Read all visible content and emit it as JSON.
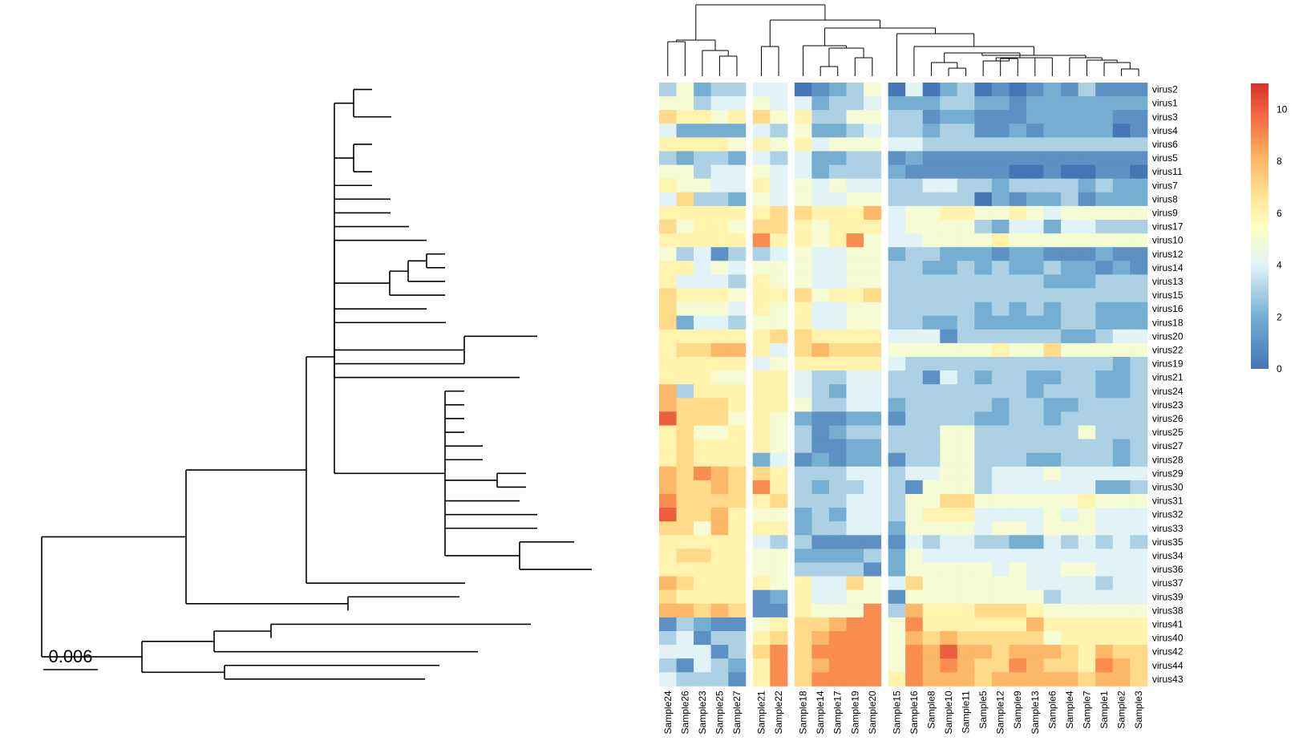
{
  "scale_bar": {
    "label": "0.006"
  },
  "chart_data": {
    "type": "heatmap",
    "title": "",
    "rows": [
      "virus2",
      "virus1",
      "virus3",
      "virus4",
      "virus6",
      "virus5",
      "virus11",
      "virus7",
      "virus8",
      "virus9",
      "virus17",
      "virus10",
      "virus12",
      "virus14",
      "virus13",
      "virus15",
      "virus16",
      "virus18",
      "virus20",
      "virus22",
      "virus19",
      "virus21",
      "virus24",
      "virus23",
      "virus26",
      "virus25",
      "virus27",
      "virus28",
      "virus29",
      "virus30",
      "virus31",
      "virus32",
      "virus33",
      "virus35",
      "virus34",
      "virus36",
      "virus37",
      "virus39",
      "virus38",
      "virus41",
      "virus40",
      "virus42",
      "virus44",
      "virus43"
    ],
    "columns": [
      "Sample24",
      "Sample26",
      "Sample23",
      "Sample25",
      "Sample27",
      "Sample21",
      "Sample22",
      "Sample18",
      "Sample14",
      "Sample17",
      "Sample19",
      "Sample20",
      "Sample15",
      "Sample16",
      "Sample8",
      "Sample10",
      "Sample11",
      "Sample5",
      "Sample12",
      "Sample9",
      "Sample13",
      "Sample6",
      "Sample4",
      "Sample7",
      "Sample1",
      "Sample2",
      "Sample3"
    ],
    "column_groups": [
      5,
      2,
      5,
      15
    ],
    "values": [
      [
        3,
        5,
        2,
        3,
        3,
        4,
        4,
        0,
        1,
        2,
        3,
        5,
        0,
        4,
        0,
        2,
        3,
        0,
        1,
        0,
        1,
        2,
        1,
        3,
        1,
        1,
        1
      ],
      [
        5,
        5,
        3,
        4,
        4,
        5,
        4,
        4,
        2,
        3,
        3,
        4,
        2,
        2,
        2,
        3,
        3,
        2,
        2,
        1,
        2,
        2,
        2,
        2,
        2,
        2,
        2
      ],
      [
        7,
        6,
        6,
        5,
        6,
        7,
        5,
        6,
        3,
        3,
        5,
        5,
        3,
        3,
        1,
        2,
        2,
        1,
        1,
        1,
        2,
        2,
        2,
        2,
        2,
        1,
        1
      ],
      [
        4,
        2,
        2,
        2,
        2,
        4,
        3,
        5,
        2,
        2,
        3,
        4,
        3,
        3,
        2,
        3,
        3,
        1,
        1,
        2,
        1,
        2,
        2,
        2,
        2,
        0,
        1
      ],
      [
        6,
        6,
        6,
        6,
        5,
        6,
        5,
        6,
        4,
        5,
        5,
        5,
        4,
        4,
        3,
        3,
        3,
        3,
        3,
        3,
        3,
        3,
        3,
        3,
        3,
        3,
        3
      ],
      [
        3,
        2,
        3,
        3,
        2,
        4,
        3,
        4,
        2,
        2,
        3,
        3,
        1,
        2,
        1,
        1,
        1,
        1,
        1,
        1,
        1,
        1,
        1,
        1,
        1,
        1,
        1
      ],
      [
        5,
        5,
        3,
        4,
        4,
        5,
        4,
        4,
        2,
        3,
        3,
        3,
        2,
        1,
        1,
        1,
        1,
        1,
        1,
        0,
        0,
        1,
        0,
        0,
        1,
        1,
        0
      ],
      [
        6,
        5,
        5,
        4,
        4,
        6,
        4,
        5,
        4,
        5,
        4,
        4,
        3,
        3,
        4,
        4,
        3,
        3,
        2,
        3,
        3,
        3,
        3,
        2,
        3,
        2,
        2
      ],
      [
        4,
        7,
        3,
        3,
        2,
        5,
        4,
        5,
        4,
        4,
        5,
        5,
        3,
        3,
        3,
        3,
        3,
        0,
        2,
        1,
        2,
        2,
        3,
        1,
        2,
        2,
        2
      ],
      [
        6,
        6,
        6,
        6,
        6,
        6,
        7,
        7,
        6,
        6,
        6,
        8,
        4,
        5,
        5,
        6,
        6,
        5,
        5,
        6,
        5,
        4,
        5,
        5,
        5,
        5,
        5
      ],
      [
        7,
        5,
        6,
        6,
        5,
        7,
        7,
        6,
        5,
        6,
        6,
        6,
        4,
        5,
        5,
        5,
        5,
        3,
        2,
        4,
        4,
        2,
        4,
        4,
        3,
        3,
        3
      ],
      [
        6,
        6,
        6,
        6,
        6,
        9,
        6,
        6,
        5,
        6,
        9,
        5,
        4,
        4,
        5,
        5,
        5,
        5,
        6,
        5,
        5,
        5,
        5,
        5,
        5,
        5,
        5
      ],
      [
        5,
        3,
        4,
        1,
        3,
        3,
        4,
        5,
        4,
        4,
        5,
        5,
        2,
        3,
        3,
        2,
        2,
        2,
        1,
        2,
        2,
        1,
        1,
        1,
        2,
        1,
        1
      ],
      [
        6,
        6,
        4,
        5,
        4,
        5,
        5,
        5,
        4,
        4,
        5,
        5,
        3,
        3,
        2,
        2,
        3,
        2,
        3,
        2,
        2,
        3,
        2,
        2,
        1,
        2,
        1
      ],
      [
        6,
        4,
        4,
        4,
        3,
        6,
        5,
        5,
        4,
        4,
        5,
        5,
        3,
        3,
        3,
        3,
        3,
        3,
        3,
        3,
        3,
        2,
        2,
        2,
        3,
        3,
        3
      ],
      [
        7,
        6,
        6,
        6,
        5,
        6,
        6,
        7,
        5,
        6,
        6,
        7,
        3,
        3,
        3,
        3,
        3,
        3,
        3,
        3,
        3,
        3,
        3,
        3,
        3,
        3,
        3
      ],
      [
        7,
        5,
        5,
        5,
        4,
        6,
        5,
        6,
        4,
        4,
        5,
        5,
        3,
        3,
        3,
        3,
        3,
        2,
        3,
        2,
        3,
        2,
        3,
        3,
        2,
        2,
        2
      ],
      [
        7,
        2,
        4,
        4,
        3,
        5,
        5,
        6,
        4,
        4,
        5,
        5,
        3,
        3,
        2,
        2,
        3,
        2,
        2,
        2,
        2,
        2,
        3,
        3,
        2,
        2,
        2
      ],
      [
        6,
        6,
        6,
        6,
        6,
        6,
        7,
        7,
        6,
        6,
        6,
        6,
        4,
        4,
        4,
        1,
        3,
        3,
        3,
        3,
        3,
        3,
        2,
        2,
        3,
        4,
        4
      ],
      [
        6,
        7,
        7,
        8,
        8,
        6,
        4,
        7,
        8,
        7,
        7,
        7,
        5,
        5,
        5,
        5,
        5,
        5,
        6,
        5,
        5,
        7,
        5,
        5,
        5,
        5,
        5
      ],
      [
        6,
        6,
        6,
        6,
        6,
        4,
        5,
        6,
        6,
        6,
        6,
        6,
        4,
        3,
        3,
        3,
        3,
        3,
        3,
        3,
        3,
        3,
        3,
        3,
        3,
        2,
        3
      ],
      [
        6,
        6,
        6,
        5,
        5,
        6,
        6,
        4,
        3,
        3,
        4,
        4,
        3,
        3,
        1,
        4,
        3,
        2,
        3,
        3,
        2,
        2,
        3,
        3,
        2,
        2,
        3
      ],
      [
        8,
        3,
        6,
        6,
        6,
        6,
        6,
        4,
        3,
        2,
        4,
        4,
        3,
        3,
        3,
        3,
        3,
        3,
        3,
        3,
        2,
        3,
        3,
        3,
        2,
        2,
        3
      ],
      [
        8,
        7,
        7,
        7,
        6,
        6,
        6,
        5,
        3,
        3,
        4,
        4,
        2,
        3,
        3,
        3,
        3,
        3,
        2,
        3,
        3,
        2,
        2,
        3,
        3,
        3,
        3
      ],
      [
        10,
        7,
        7,
        7,
        5,
        6,
        5,
        2,
        1,
        1,
        2,
        2,
        1,
        3,
        3,
        3,
        3,
        2,
        2,
        3,
        3,
        2,
        3,
        3,
        3,
        3,
        3
      ],
      [
        6,
        7,
        5,
        5,
        6,
        6,
        5,
        3,
        1,
        2,
        3,
        3,
        3,
        3,
        3,
        5,
        5,
        3,
        3,
        3,
        3,
        3,
        3,
        5,
        3,
        3,
        3
      ],
      [
        6,
        7,
        6,
        6,
        6,
        6,
        5,
        3,
        1,
        1,
        2,
        2,
        3,
        3,
        3,
        5,
        5,
        3,
        3,
        3,
        3,
        3,
        3,
        3,
        3,
        2,
        3
      ],
      [
        6,
        7,
        6,
        6,
        6,
        2,
        4,
        1,
        2,
        1,
        2,
        2,
        1,
        3,
        3,
        5,
        5,
        3,
        3,
        3,
        2,
        2,
        3,
        3,
        3,
        2,
        3
      ],
      [
        8,
        7,
        9,
        8,
        7,
        7,
        6,
        3,
        3,
        3,
        4,
        4,
        3,
        4,
        4,
        5,
        5,
        3,
        4,
        4,
        4,
        5,
        4,
        4,
        4,
        4,
        4
      ],
      [
        8,
        7,
        7,
        8,
        7,
        9,
        6,
        3,
        2,
        3,
        3,
        4,
        3,
        1,
        5,
        5,
        5,
        3,
        4,
        4,
        4,
        4,
        4,
        4,
        2,
        2,
        3
      ],
      [
        9,
        7,
        7,
        7,
        7,
        6,
        7,
        3,
        3,
        3,
        4,
        4,
        3,
        5,
        5,
        7,
        7,
        5,
        5,
        5,
        5,
        5,
        5,
        6,
        5,
        5,
        5
      ],
      [
        10,
        7,
        7,
        8,
        6,
        5,
        5,
        2,
        3,
        2,
        4,
        4,
        3,
        5,
        6,
        6,
        6,
        4,
        4,
        4,
        4,
        5,
        4,
        5,
        4,
        4,
        4
      ],
      [
        7,
        7,
        5,
        8,
        6,
        6,
        6,
        2,
        3,
        3,
        4,
        4,
        2,
        5,
        5,
        5,
        5,
        4,
        5,
        5,
        4,
        5,
        5,
        5,
        4,
        4,
        4
      ],
      [
        6,
        6,
        6,
        6,
        6,
        4,
        3,
        3,
        1,
        1,
        1,
        1,
        1,
        4,
        3,
        4,
        4,
        3,
        3,
        2,
        2,
        4,
        3,
        4,
        3,
        4,
        3
      ],
      [
        6,
        7,
        7,
        6,
        6,
        5,
        5,
        2,
        2,
        2,
        2,
        3,
        2,
        5,
        4,
        4,
        4,
        4,
        4,
        4,
        4,
        4,
        4,
        4,
        4,
        4,
        4
      ],
      [
        6,
        6,
        6,
        6,
        6,
        5,
        5,
        3,
        3,
        3,
        3,
        1,
        2,
        5,
        5,
        5,
        5,
        5,
        4,
        5,
        4,
        4,
        5,
        5,
        4,
        4,
        4
      ],
      [
        8,
        7,
        6,
        6,
        6,
        6,
        5,
        6,
        4,
        4,
        7,
        5,
        4,
        7,
        5,
        5,
        5,
        5,
        5,
        5,
        4,
        4,
        4,
        4,
        3,
        4,
        4
      ],
      [
        7,
        6,
        6,
        6,
        6,
        1,
        2,
        6,
        4,
        4,
        5,
        5,
        1,
        5,
        5,
        5,
        5,
        5,
        5,
        5,
        5,
        3,
        4,
        4,
        4,
        4,
        4
      ],
      [
        8,
        8,
        7,
        8,
        7,
        1,
        1,
        6,
        5,
        5,
        5,
        9,
        3,
        8,
        6,
        6,
        6,
        7,
        7,
        7,
        6,
        5,
        5,
        5,
        5,
        5,
        5
      ],
      [
        1,
        3,
        2,
        1,
        1,
        5,
        6,
        7,
        7,
        8,
        9,
        9,
        5,
        9,
        6,
        6,
        6,
        6,
        6,
        6,
        8,
        6,
        6,
        6,
        6,
        6,
        6
      ],
      [
        3,
        4,
        1,
        3,
        3,
        6,
        7,
        7,
        8,
        9,
        9,
        9,
        5,
        8,
        7,
        8,
        7,
        7,
        7,
        7,
        7,
        5,
        6,
        6,
        6,
        6,
        6
      ],
      [
        4,
        4,
        4,
        1,
        3,
        7,
        9,
        7,
        9,
        9,
        9,
        9,
        5,
        9,
        8,
        10,
        8,
        8,
        7,
        8,
        8,
        8,
        7,
        6,
        8,
        7,
        7
      ],
      [
        3,
        1,
        4,
        3,
        2,
        6,
        9,
        7,
        8,
        9,
        9,
        9,
        5,
        9,
        8,
        9,
        8,
        7,
        7,
        9,
        8,
        7,
        7,
        6,
        9,
        8,
        7
      ],
      [
        4,
        3,
        3,
        3,
        1,
        6,
        9,
        7,
        9,
        9,
        9,
        9,
        6,
        9,
        8,
        8,
        8,
        7,
        8,
        8,
        8,
        8,
        8,
        7,
        8,
        8,
        7
      ]
    ],
    "colorbar": {
      "range": [
        0,
        11
      ],
      "ticks": [
        "0",
        "2",
        "4",
        "6",
        "8",
        "10"
      ]
    }
  }
}
